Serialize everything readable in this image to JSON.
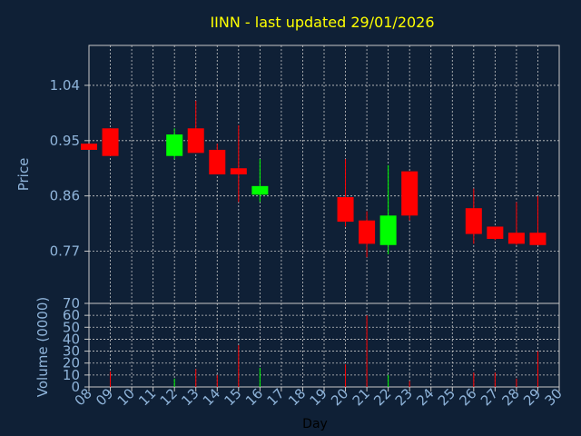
{
  "chart_data": [
    {
      "type": "candlestick",
      "title": "IINN - last updated 29/01/2026",
      "ylabel": "Price",
      "ylim": [
        0.685,
        1.105
      ],
      "y_ticks": [
        "1.04",
        "0.95",
        "0.86",
        "0.77"
      ],
      "y_tick_values": [
        1.04,
        0.95,
        0.86,
        0.77
      ],
      "grid": true,
      "up_color": "#00ff00",
      "down_color": "#ff0000",
      "candles": [
        {
          "day": "08",
          "open": 0.945,
          "high": 0.945,
          "low": 0.935,
          "close": 0.935
        },
        {
          "day": "09",
          "open": 0.97,
          "high": 0.97,
          "low": 0.925,
          "close": 0.925
        },
        {
          "day": "12",
          "open": 0.925,
          "high": 0.97,
          "low": 0.92,
          "close": 0.96
        },
        {
          "day": "13",
          "open": 0.97,
          "high": 1.015,
          "low": 0.93,
          "close": 0.93
        },
        {
          "day": "14",
          "open": 0.935,
          "high": 0.945,
          "low": 0.895,
          "close": 0.895
        },
        {
          "day": "15",
          "open": 0.905,
          "high": 0.975,
          "low": 0.85,
          "close": 0.895
        },
        {
          "day": "16",
          "open": 0.862,
          "high": 0.92,
          "low": 0.85,
          "close": 0.876
        },
        {
          "day": "20",
          "open": 0.858,
          "high": 0.92,
          "low": 0.81,
          "close": 0.818
        },
        {
          "day": "21",
          "open": 0.82,
          "high": 0.835,
          "low": 0.76,
          "close": 0.782
        },
        {
          "day": "22",
          "open": 0.78,
          "high": 0.91,
          "low": 0.765,
          "close": 0.828
        },
        {
          "day": "23",
          "open": 0.9,
          "high": 0.9,
          "low": 0.82,
          "close": 0.828
        },
        {
          "day": "26",
          "open": 0.84,
          "high": 0.872,
          "low": 0.782,
          "close": 0.798
        },
        {
          "day": "27",
          "open": 0.81,
          "high": 0.81,
          "low": 0.788,
          "close": 0.79
        },
        {
          "day": "28",
          "open": 0.8,
          "high": 0.85,
          "low": 0.78,
          "close": 0.782
        },
        {
          "day": "29",
          "open": 0.8,
          "high": 0.86,
          "low": 0.78,
          "close": 0.78
        }
      ]
    },
    {
      "type": "bar",
      "ylabel": "Volume (0000)",
      "xlabel": "Day",
      "ylim": [
        0,
        70
      ],
      "y_ticks": [
        0,
        10,
        20,
        30,
        40,
        50,
        60,
        70
      ],
      "x_ticks": [
        "08",
        "09",
        "10",
        "11",
        "12",
        "13",
        "14",
        "15",
        "16",
        "17",
        "18",
        "19",
        "20",
        "21",
        "22",
        "23",
        "24",
        "25",
        "26",
        "27",
        "28",
        "29",
        "30"
      ],
      "grid": true,
      "bars": [
        {
          "day": "09",
          "value": 13,
          "color": "#ff0000"
        },
        {
          "day": "12",
          "value": 7,
          "color": "#00ff00"
        },
        {
          "day": "13",
          "value": 15,
          "color": "#ff0000"
        },
        {
          "day": "14",
          "value": 10,
          "color": "#ff0000"
        },
        {
          "day": "15",
          "value": 35,
          "color": "#ff0000"
        },
        {
          "day": "16",
          "value": 16,
          "color": "#00ff00"
        },
        {
          "day": "20",
          "value": 19,
          "color": "#ff0000"
        },
        {
          "day": "21",
          "value": 60,
          "color": "#ff0000"
        },
        {
          "day": "22",
          "value": 10,
          "color": "#00ff00"
        },
        {
          "day": "23",
          "value": 5,
          "color": "#ff0000"
        },
        {
          "day": "26",
          "value": 12,
          "color": "#ff0000"
        },
        {
          "day": "27",
          "value": 12,
          "color": "#ff0000"
        },
        {
          "day": "28",
          "value": 7,
          "color": "#ff0000"
        },
        {
          "day": "29",
          "value": 30,
          "color": "#ff0000"
        }
      ]
    }
  ]
}
